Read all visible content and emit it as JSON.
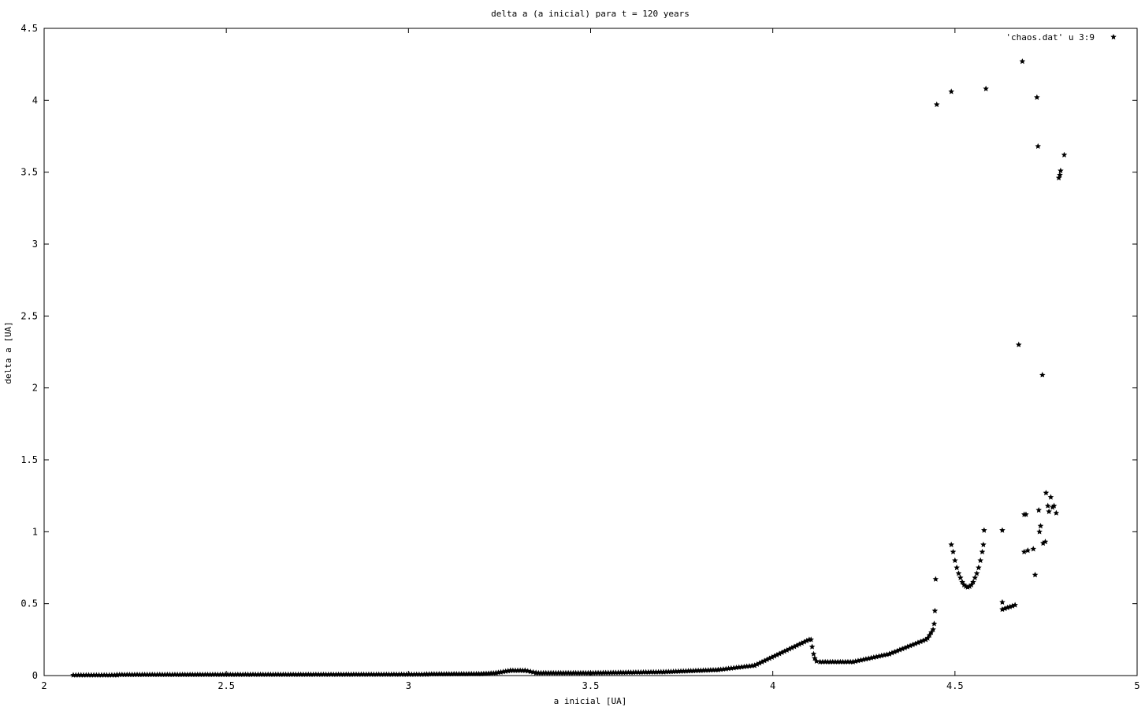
{
  "chart_data": {
    "type": "scatter",
    "title": "delta a (a inicial) para t = 120 years",
    "xlabel": "a inicial [UA]",
    "ylabel": "delta a [UA]",
    "xlim": [
      2,
      5
    ],
    "ylim": [
      0,
      4.5
    ],
    "x_ticks": [
      "2",
      "2.5",
      "3",
      "3.5",
      "4",
      "4.5",
      "5"
    ],
    "y_ticks": [
      "0",
      "0.5",
      "1",
      "1.5",
      "2",
      "2.5",
      "3",
      "3.5",
      "4",
      "4.5"
    ],
    "grid": false,
    "legend_position": "top-right",
    "series": [
      {
        "name": "'chaos.dat' u 3:9",
        "marker": "star",
        "color": "#000000",
        "segments": [
          {
            "x": [
              2.08,
              2.2
            ],
            "y": [
              0.003,
              0.003
            ]
          },
          {
            "x": [
              2.2,
              3.05
            ],
            "y": [
              0.006,
              0.008
            ]
          },
          {
            "x": [
              3.05,
              3.2
            ],
            "y": [
              0.01,
              0.012
            ]
          },
          {
            "x": [
              3.2,
              3.24
            ],
            "y": [
              0.012,
              0.018
            ]
          },
          {
            "x": [
              3.24,
              3.28
            ],
            "y": [
              0.018,
              0.035
            ]
          },
          {
            "x": [
              3.28,
              3.32
            ],
            "y": [
              0.035,
              0.035
            ]
          },
          {
            "x": [
              3.32,
              3.35
            ],
            "y": [
              0.035,
              0.02
            ]
          },
          {
            "x": [
              3.35,
              3.5
            ],
            "y": [
              0.018,
              0.018
            ]
          },
          {
            "x": [
              3.5,
              3.7
            ],
            "y": [
              0.018,
              0.025
            ]
          },
          {
            "x": [
              3.7,
              3.85
            ],
            "y": [
              0.025,
              0.04
            ]
          },
          {
            "x": [
              3.85,
              3.95
            ],
            "y": [
              0.04,
              0.07
            ]
          },
          {
            "x": [
              3.95,
              4.1
            ],
            "y": [
              0.07,
              0.25
            ]
          },
          {
            "x": [
              4.13,
              4.22
            ],
            "y": [
              0.095,
              0.095
            ]
          },
          {
            "x": [
              4.22,
              4.32
            ],
            "y": [
              0.095,
              0.15
            ]
          },
          {
            "x": [
              4.32,
              4.42
            ],
            "y": [
              0.15,
              0.25
            ]
          },
          {
            "x": [
              4.63,
              4.665
            ],
            "y": [
              0.46,
              0.49
            ]
          }
        ],
        "points": [
          {
            "x": 4.105,
            "y": 0.25
          },
          {
            "x": 4.108,
            "y": 0.2
          },
          {
            "x": 4.112,
            "y": 0.15
          },
          {
            "x": 4.115,
            "y": 0.12
          },
          {
            "x": 4.12,
            "y": 0.1
          },
          {
            "x": 4.425,
            "y": 0.26
          },
          {
            "x": 4.43,
            "y": 0.28
          },
          {
            "x": 4.435,
            "y": 0.3
          },
          {
            "x": 4.44,
            "y": 0.32
          },
          {
            "x": 4.443,
            "y": 0.36
          },
          {
            "x": 4.445,
            "y": 0.45
          },
          {
            "x": 4.447,
            "y": 0.67
          },
          {
            "x": 4.45,
            "y": 3.97
          },
          {
            "x": 4.49,
            "y": 4.06
          },
          {
            "x": 4.49,
            "y": 0.91
          },
          {
            "x": 4.495,
            "y": 0.86
          },
          {
            "x": 4.5,
            "y": 0.8
          },
          {
            "x": 4.505,
            "y": 0.75
          },
          {
            "x": 4.51,
            "y": 0.71
          },
          {
            "x": 4.515,
            "y": 0.68
          },
          {
            "x": 4.52,
            "y": 0.65
          },
          {
            "x": 4.525,
            "y": 0.63
          },
          {
            "x": 4.53,
            "y": 0.62
          },
          {
            "x": 4.535,
            "y": 0.615
          },
          {
            "x": 4.54,
            "y": 0.62
          },
          {
            "x": 4.545,
            "y": 0.63
          },
          {
            "x": 4.55,
            "y": 0.65
          },
          {
            "x": 4.555,
            "y": 0.68
          },
          {
            "x": 4.56,
            "y": 0.71
          },
          {
            "x": 4.565,
            "y": 0.75
          },
          {
            "x": 4.57,
            "y": 0.8
          },
          {
            "x": 4.575,
            "y": 0.86
          },
          {
            "x": 4.578,
            "y": 0.91
          },
          {
            "x": 4.58,
            "y": 1.01
          },
          {
            "x": 4.585,
            "y": 4.08
          },
          {
            "x": 4.63,
            "y": 1.01
          },
          {
            "x": 4.63,
            "y": 0.51
          },
          {
            "x": 4.675,
            "y": 2.3
          },
          {
            "x": 4.685,
            "y": 4.27
          },
          {
            "x": 4.69,
            "y": 1.12
          },
          {
            "x": 4.695,
            "y": 1.12
          },
          {
            "x": 4.69,
            "y": 0.86
          },
          {
            "x": 4.7,
            "y": 0.87
          },
          {
            "x": 4.715,
            "y": 0.88
          },
          {
            "x": 4.72,
            "y": 0.7
          },
          {
            "x": 4.725,
            "y": 4.02
          },
          {
            "x": 4.728,
            "y": 3.68
          },
          {
            "x": 4.73,
            "y": 1.15
          },
          {
            "x": 4.732,
            "y": 1.0
          },
          {
            "x": 4.735,
            "y": 1.04
          },
          {
            "x": 4.74,
            "y": 2.09
          },
          {
            "x": 4.742,
            "y": 0.92
          },
          {
            "x": 4.748,
            "y": 0.93
          },
          {
            "x": 4.75,
            "y": 1.27
          },
          {
            "x": 4.755,
            "y": 1.18
          },
          {
            "x": 4.758,
            "y": 1.14
          },
          {
            "x": 4.763,
            "y": 1.24
          },
          {
            "x": 4.768,
            "y": 1.17
          },
          {
            "x": 4.772,
            "y": 1.18
          },
          {
            "x": 4.778,
            "y": 1.13
          },
          {
            "x": 4.785,
            "y": 3.46
          },
          {
            "x": 4.788,
            "y": 3.48
          },
          {
            "x": 4.79,
            "y": 3.51
          },
          {
            "x": 4.8,
            "y": 3.62
          }
        ]
      }
    ]
  }
}
